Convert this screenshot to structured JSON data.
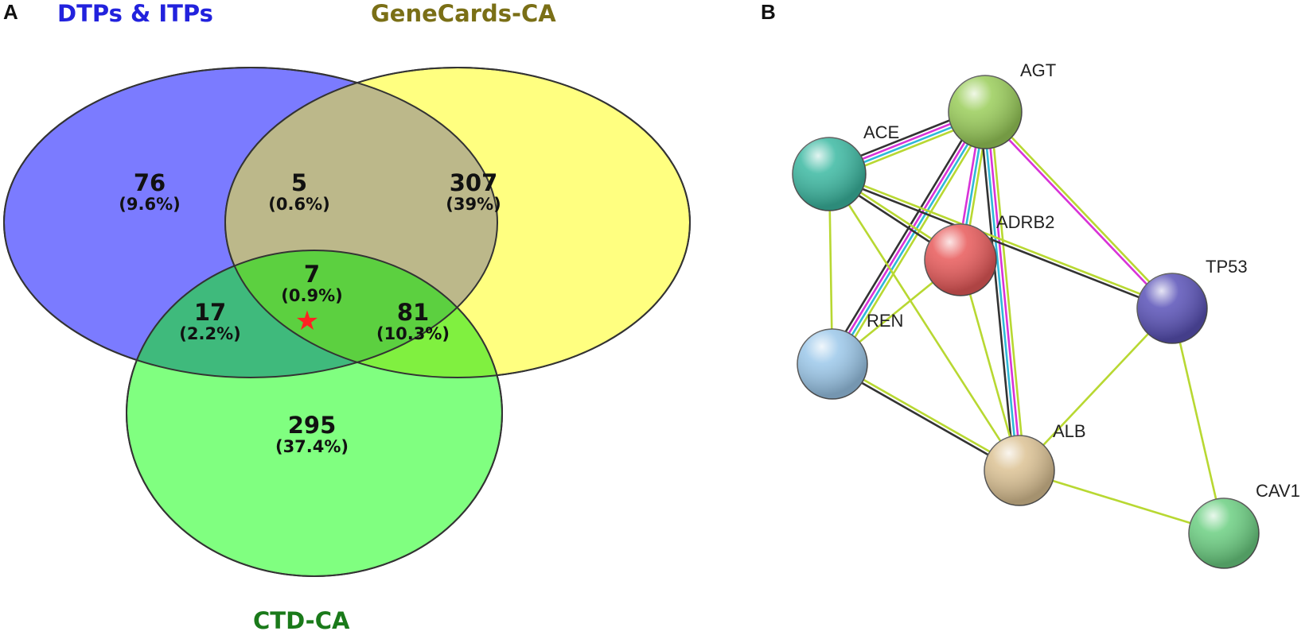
{
  "panel_a": {
    "letter": "A",
    "sets": [
      {
        "title": "DTPs & ITPs",
        "color": "#2222dd",
        "fill": "#7b7bff"
      },
      {
        "title": "GeneCards-CA",
        "color": "#7a6f16",
        "fill": "#ffff80"
      },
      {
        "title": "CTD-CA",
        "color": "#1a7a1a",
        "fill": "#80ff80"
      }
    ],
    "regions": [
      {
        "count": "76",
        "percent": "(9.6%)"
      },
      {
        "count": "5",
        "percent": "(0.6%)"
      },
      {
        "count": "307",
        "percent": "(39%)"
      },
      {
        "count": "7",
        "percent": "(0.9%)"
      },
      {
        "count": "17",
        "percent": "(2.2%)"
      },
      {
        "count": "81",
        "percent": "(10.3%)"
      },
      {
        "count": "295",
        "percent": "(37.4%)"
      }
    ],
    "marker": "★",
    "marker_color": "#ff2222"
  },
  "panel_b": {
    "letter": "B",
    "nodes": [
      {
        "id": "AGT",
        "label": "AGT",
        "color": "#9acd5a"
      },
      {
        "id": "ACE",
        "label": "ACE",
        "color": "#3cb9a2"
      },
      {
        "id": "ADRB2",
        "label": "ADRB2",
        "color": "#e85a5a"
      },
      {
        "id": "TP53",
        "label": "TP53",
        "color": "#5a52b8"
      },
      {
        "id": "REN",
        "label": "REN",
        "color": "#9cc8ea"
      },
      {
        "id": "ALB",
        "label": "ALB",
        "color": "#dcc294"
      },
      {
        "id": "CAV1",
        "label": "CAV1",
        "color": "#6ccf82"
      }
    ],
    "edge_colors": {
      "textmining": "#b8d832",
      "coexpression": "#333333",
      "database": "#2fb9d8",
      "experiment": "#d833d8"
    },
    "edges": [
      {
        "from": "AGT",
        "to": "ACE",
        "types": [
          "textmining",
          "database",
          "experiment",
          "coexpression"
        ]
      },
      {
        "from": "AGT",
        "to": "REN",
        "types": [
          "textmining",
          "database",
          "experiment",
          "coexpression"
        ]
      },
      {
        "from": "AGT",
        "to": "ADRB2",
        "types": [
          "textmining",
          "database",
          "experiment"
        ]
      },
      {
        "from": "AGT",
        "to": "ALB",
        "types": [
          "textmining",
          "experiment",
          "database",
          "coexpression"
        ]
      },
      {
        "from": "AGT",
        "to": "TP53",
        "types": [
          "textmining",
          "experiment"
        ]
      },
      {
        "from": "ACE",
        "to": "REN",
        "types": [
          "textmining"
        ]
      },
      {
        "from": "ACE",
        "to": "ADRB2",
        "types": [
          "textmining",
          "coexpression"
        ]
      },
      {
        "from": "ACE",
        "to": "TP53",
        "types": [
          "textmining",
          "coexpression"
        ]
      },
      {
        "from": "ACE",
        "to": "ALB",
        "types": [
          "textmining"
        ]
      },
      {
        "from": "REN",
        "to": "ADRB2",
        "types": [
          "textmining"
        ]
      },
      {
        "from": "REN",
        "to": "ALB",
        "types": [
          "textmining",
          "coexpression"
        ]
      },
      {
        "from": "ADRB2",
        "to": "ALB",
        "types": [
          "textmining"
        ]
      },
      {
        "from": "TP53",
        "to": "ALB",
        "types": [
          "textmining"
        ]
      },
      {
        "from": "TP53",
        "to": "CAV1",
        "types": [
          "textmining"
        ]
      },
      {
        "from": "ALB",
        "to": "CAV1",
        "types": [
          "textmining"
        ]
      }
    ]
  }
}
